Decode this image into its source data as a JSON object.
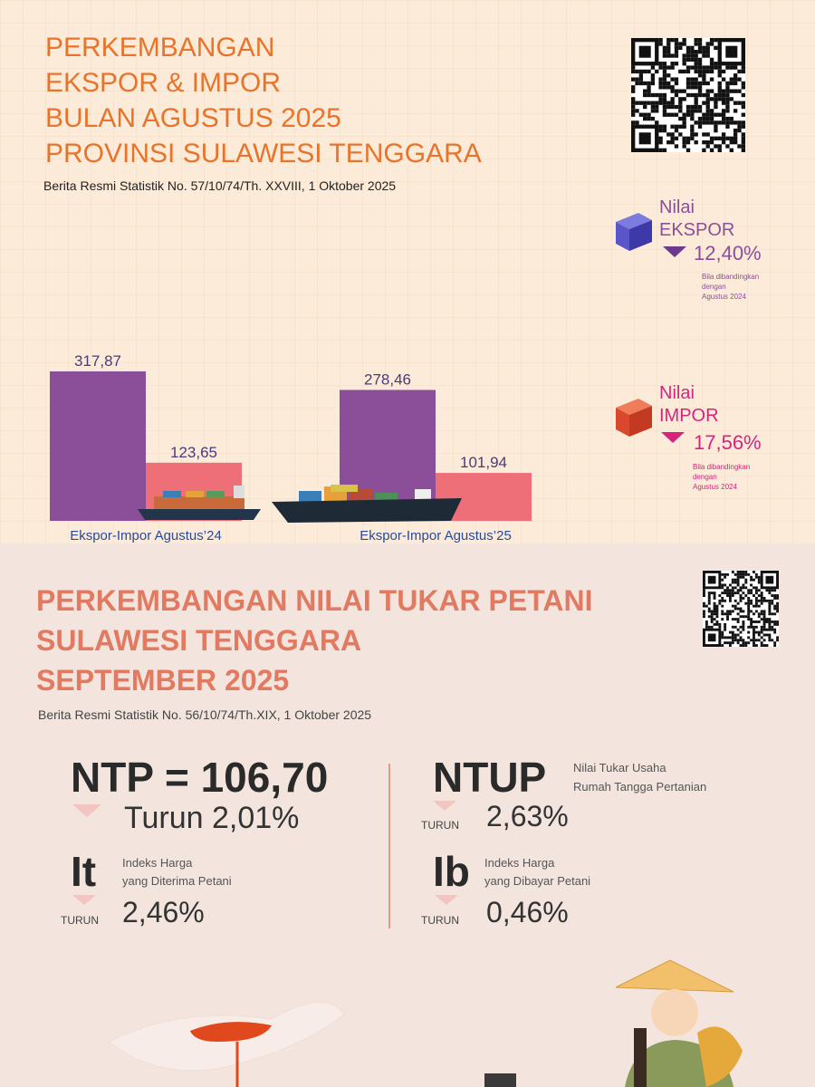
{
  "ekspor_impor": {
    "title": [
      "PERKEMBANGAN",
      "EKSPOR & IMPOR",
      "BULAN AGUSTUS 2025",
      "PROVINSI SULAWESI TENGGARA"
    ],
    "subtitle": "Berita Resmi Statistik No. 57/10/74/Th. XXVIII, 1 Oktober 2025",
    "ekspor": {
      "label": "Nilai",
      "name": "EKSPOR",
      "change": "12,40%",
      "note": [
        "Bila dibandingkan",
        "dengan",
        "Agustus 2024"
      ]
    },
    "impor": {
      "label": "Nilai",
      "name": "IMPOR",
      "change": "17,56%",
      "note": [
        "Bila dibandingkan",
        "dengan",
        "Agustus 2024"
      ]
    }
  },
  "chart_data": {
    "type": "bar",
    "categories": [
      "Ekspor-Impor Agustus’24",
      "Ekspor-Impor Agustus’25"
    ],
    "series": [
      {
        "color": "#8a4f98",
        "values": [
          317.87,
          278.46
        ],
        "value_labels": [
          "317,87",
          "278,46"
        ]
      },
      {
        "color": "#ef6f79",
        "values": [
          123.65,
          101.94
        ],
        "value_labels": [
          "123,65",
          "101,94"
        ]
      }
    ]
  },
  "ntp": {
    "title": [
      "PERKEMBANGAN NILAI TUKAR PETANI",
      "SULAWESI TENGGARA",
      "SEPTEMBER 2025"
    ],
    "subtitle": "Berita Resmi Statistik No. 56/10/74/Th.XIX, 1 Oktober 2025",
    "ntp": {
      "label": "NTP = 106,70",
      "change": "Turun 2,01%"
    },
    "ntup": {
      "label": "NTUP",
      "description": [
        "Nilai Tukar Usaha",
        "Rumah Tangga Pertanian"
      ],
      "direction": "TURUN",
      "change": "2,63%"
    },
    "it": {
      "label": "It",
      "description": [
        "Indeks Harga",
        "yang Diterima Petani"
      ],
      "direction": "TURUN",
      "change": "2,46%"
    },
    "ib": {
      "label": "Ib",
      "description": [
        "Indeks Harga",
        "yang Dibayar Petani"
      ],
      "direction": "TURUN",
      "change": "0,46%"
    }
  }
}
